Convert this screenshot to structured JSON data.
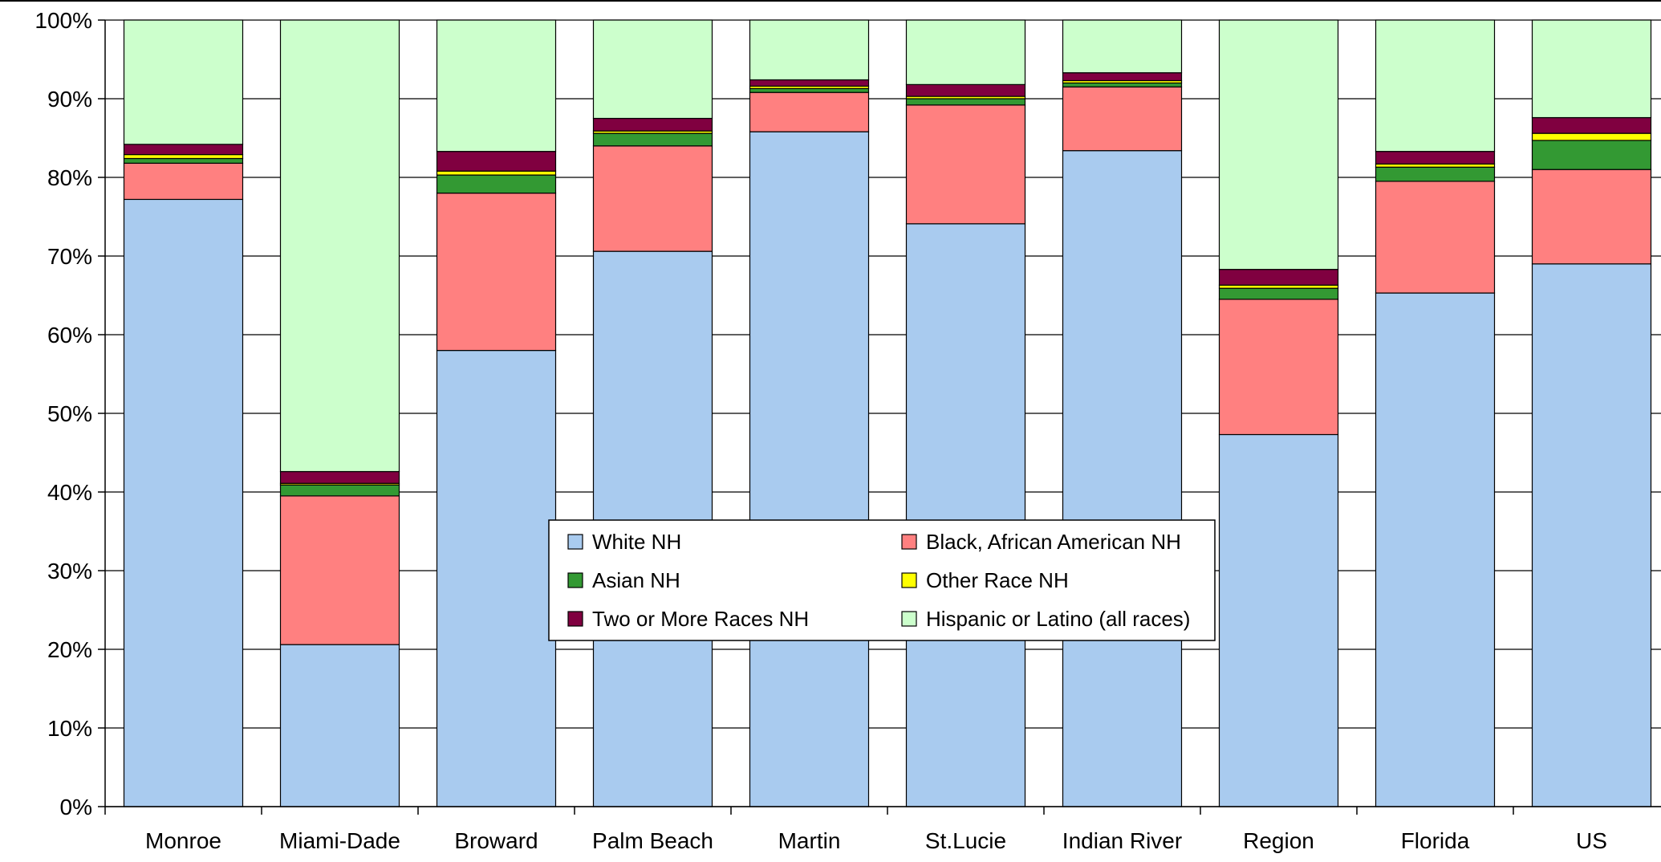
{
  "chart_data": {
    "type": "bar",
    "stacked": true,
    "percent_stacked": true,
    "categories": [
      "Monroe",
      "Miami-Dade",
      "Broward",
      "Palm Beach",
      "Martin",
      "St.Lucie",
      "Indian River",
      "Region",
      "Florida",
      "US"
    ],
    "series": [
      {
        "name": "White NH",
        "color": "#A9CBEF",
        "values": [
          77.2,
          20.6,
          58.0,
          70.6,
          85.8,
          74.1,
          83.4,
          47.3,
          65.3,
          69.0
        ]
      },
      {
        "name": "Black, African American NH",
        "color": "#FF8080",
        "values": [
          4.6,
          18.9,
          20.0,
          13.4,
          5.0,
          15.1,
          8.1,
          17.2,
          14.2,
          12.0
        ]
      },
      {
        "name": "Asian NH",
        "color": "#339933",
        "values": [
          0.6,
          1.4,
          2.3,
          1.6,
          0.5,
          0.8,
          0.5,
          1.4,
          1.8,
          3.7
        ]
      },
      {
        "name": "Other Race NH",
        "color": "#FFFF00",
        "values": [
          0.5,
          0.2,
          0.5,
          0.3,
          0.3,
          0.3,
          0.3,
          0.4,
          0.4,
          0.9
        ]
      },
      {
        "name": "Two or More Races NH",
        "color": "#800040",
        "values": [
          1.3,
          1.5,
          2.5,
          1.6,
          0.8,
          1.5,
          1.0,
          2.0,
          1.6,
          2.0
        ]
      },
      {
        "name": "Hispanic or Latino (all races)",
        "color": "#CCFFCC",
        "values": [
          15.8,
          57.4,
          16.7,
          12.5,
          7.6,
          8.2,
          6.7,
          31.7,
          16.7,
          12.4
        ]
      }
    ],
    "ylim": [
      0,
      100
    ],
    "yticks": [
      "0%",
      "10%",
      "20%",
      "30%",
      "40%",
      "50%",
      "60%",
      "70%",
      "80%",
      "90%",
      "100%"
    ],
    "grid": true,
    "legend_position": "center"
  }
}
